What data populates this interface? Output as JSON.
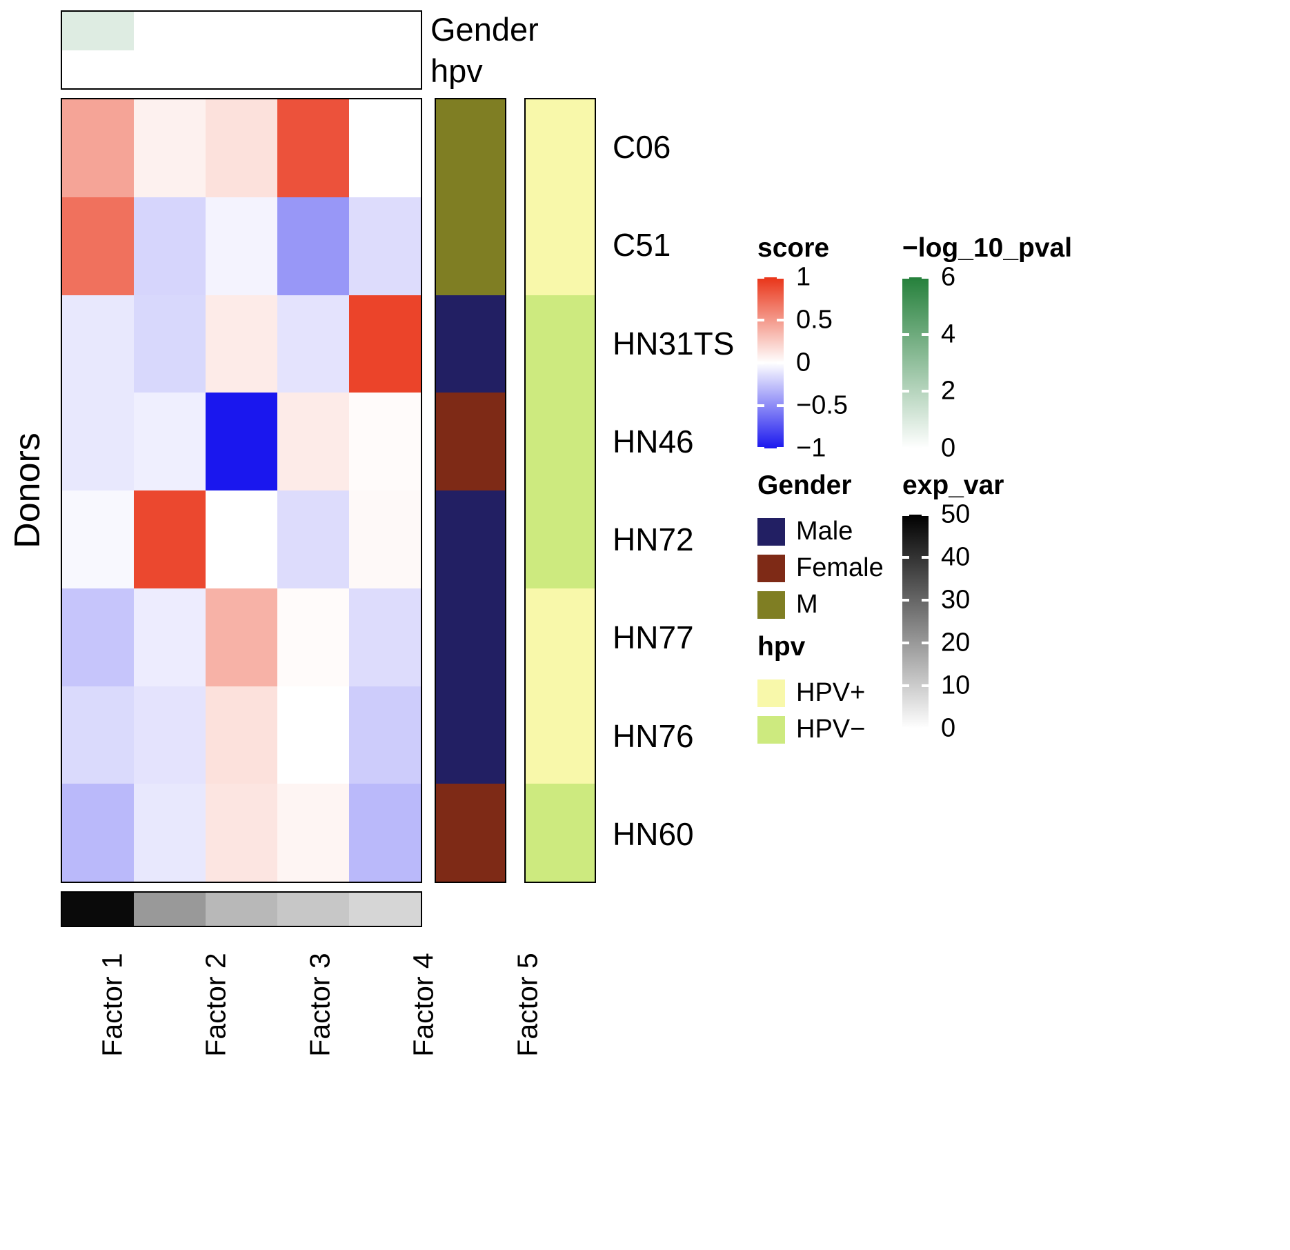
{
  "labels": {
    "donors": "Donors",
    "gender": "Gender",
    "hpv": "hpv"
  },
  "chart_data": {
    "type": "heatmap",
    "rows": [
      "C06",
      "C51",
      "HN31TS",
      "HN46",
      "HN72",
      "HN77",
      "HN76",
      "HN60"
    ],
    "columns": [
      "Factor 1",
      "Factor 2",
      "Factor 3",
      "Factor 4",
      "Factor 5"
    ],
    "score_matrix": [
      [
        0.45,
        0.07,
        0.15,
        0.85,
        0.0
      ],
      [
        0.7,
        -0.18,
        -0.05,
        -0.45,
        -0.15
      ],
      [
        -0.1,
        -0.17,
        0.1,
        -0.12,
        0.92
      ],
      [
        -0.1,
        -0.07,
        -1.0,
        0.1,
        0.02
      ],
      [
        -0.03,
        0.9,
        0.0,
        -0.15,
        0.03
      ],
      [
        -0.25,
        -0.08,
        0.38,
        0.02,
        -0.15
      ],
      [
        -0.16,
        -0.12,
        0.15,
        0.0,
        -0.22
      ],
      [
        -0.3,
        -0.1,
        0.13,
        0.05,
        -0.3
      ]
    ],
    "score_range": [
      -1,
      1
    ],
    "row_gender": [
      "M",
      "M",
      "Male",
      "Female",
      "Male",
      "Male",
      "Male",
      "Female"
    ],
    "row_hpv": [
      "HPV+",
      "HPV+",
      "HPV-",
      "HPV-",
      "HPV-",
      "HPV+",
      "HPV+",
      "HPV-"
    ],
    "pval_annotation": {
      "row_names": [
        "Gender",
        "hpv"
      ],
      "max": 6,
      "values": [
        [
          0.9,
          0,
          0,
          0,
          0
        ],
        [
          0,
          0,
          0,
          0,
          0
        ]
      ]
    },
    "exp_var": {
      "max": 50,
      "values": [
        48,
        20,
        14,
        11,
        8
      ]
    }
  },
  "legends": {
    "score": {
      "title": "score",
      "ticks": [
        "1",
        "0.5",
        "0",
        "−0.5",
        "−1"
      ]
    },
    "pval": {
      "title": "−log_10_pval",
      "ticks": [
        "6",
        "4",
        "2",
        "0"
      ]
    },
    "gender": {
      "title": "Gender",
      "items": [
        {
          "label": "Male",
          "key": "Male"
        },
        {
          "label": "Female",
          "key": "Female"
        },
        {
          "label": "M",
          "key": "M"
        }
      ]
    },
    "exp_var": {
      "title": "exp_var",
      "ticks": [
        "50",
        "40",
        "30",
        "20",
        "10",
        "0"
      ]
    },
    "hpv": {
      "title": "hpv",
      "items": [
        {
          "label": "HPV+",
          "key": "HPV+"
        },
        {
          "label": "HPV−",
          "key": "HPV-"
        }
      ]
    }
  },
  "colors": {
    "score_pos": "#e93418",
    "score_zero": "#ffffff",
    "score_neg": "#1a17ee",
    "pval_max": "#25803b",
    "pval_min": "#ffffff",
    "expvar_max": "#000000",
    "expvar_min": "#ffffff",
    "gender": {
      "Male": "#221f63",
      "Female": "#7e2a16",
      "M": "#7f7e23"
    },
    "hpv": {
      "HPV+": "#f8f8aa",
      "HPV-": "#cdea7f"
    }
  }
}
